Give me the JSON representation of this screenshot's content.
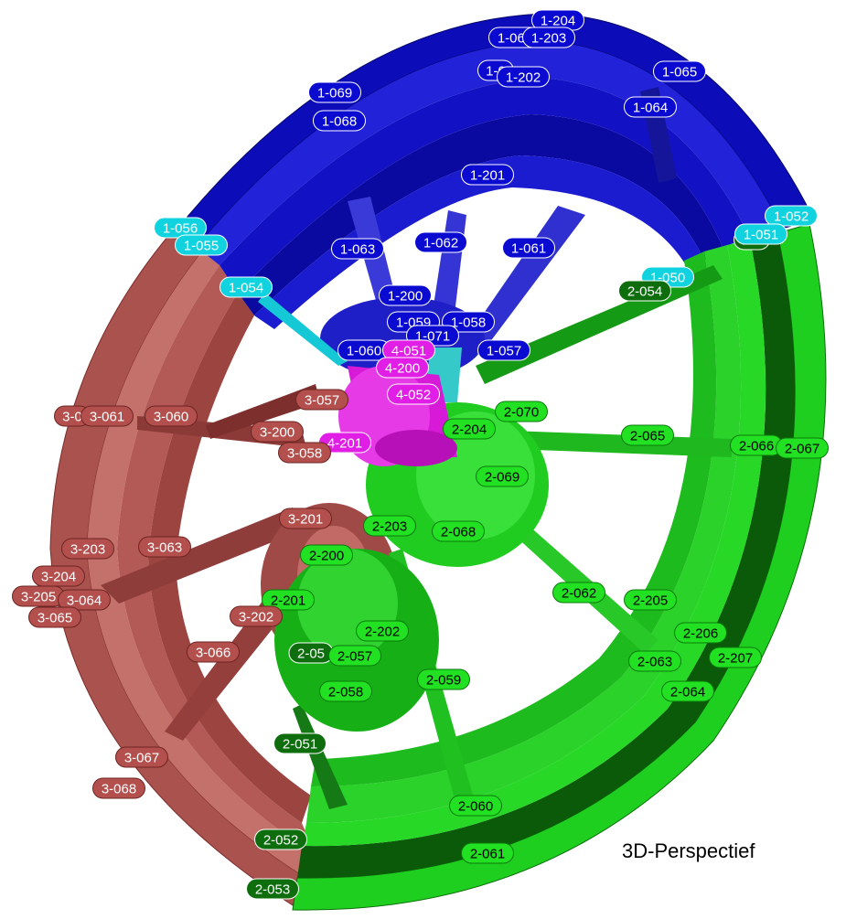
{
  "caption": "3D-Perspectief",
  "colors": {
    "blue": "#0a0ad0",
    "cyan": "#11d3e0",
    "magenta": "#e11ee6",
    "red": "#b3504d",
    "lightgreen": "#22e022",
    "darkgreen": "#0e6e0e",
    "brightred": "#e00000"
  },
  "labels": [
    {
      "text": "1-204",
      "color": "blue"
    },
    {
      "text": "1-067",
      "color": "blue"
    },
    {
      "text": "1-203",
      "color": "blue"
    },
    {
      "text": "1-0",
      "color": "blue"
    },
    {
      "text": "1-202",
      "color": "blue"
    },
    {
      "text": "1-065",
      "color": "blue"
    },
    {
      "text": "1-069",
      "color": "blue"
    },
    {
      "text": "1-068",
      "color": "blue"
    },
    {
      "text": "1-064",
      "color": "blue"
    },
    {
      "text": "1-201",
      "color": "blue"
    },
    {
      "text": "1-052",
      "color": "cyan"
    },
    {
      "text": "1-056",
      "color": "cyan"
    },
    {
      "text": "1-055",
      "color": "cyan"
    },
    {
      "text": "1-063",
      "color": "blue"
    },
    {
      "text": "1-062",
      "color": "blue"
    },
    {
      "text": "1-061",
      "color": "blue"
    },
    {
      "text": "2-0",
      "color": "darkgreen"
    },
    {
      "text": "1-051",
      "color": "cyan"
    },
    {
      "text": "1-054",
      "color": "cyan"
    },
    {
      "text": "1-050",
      "color": "cyan"
    },
    {
      "text": "2-054",
      "color": "darkgreen"
    },
    {
      "text": "1-200",
      "color": "blue"
    },
    {
      "text": "1-059",
      "color": "blue"
    },
    {
      "text": "1-058",
      "color": "blue"
    },
    {
      "text": "1-071",
      "color": "blue"
    },
    {
      "text": "1-060",
      "color": "blue"
    },
    {
      "text": "4-051",
      "color": "magenta"
    },
    {
      "text": "1-057",
      "color": "blue"
    },
    {
      "text": "4-200",
      "color": "magenta"
    },
    {
      "text": "4-052",
      "color": "magenta"
    },
    {
      "text": "3-057",
      "color": "red"
    },
    {
      "text": "2-070",
      "color": "lightgreen"
    },
    {
      "text": "3-0",
      "color": "red"
    },
    {
      "text": "3-061",
      "color": "red"
    },
    {
      "text": "3-060",
      "color": "red"
    },
    {
      "text": "3-200",
      "color": "red"
    },
    {
      "text": "2-204",
      "color": "lightgreen"
    },
    {
      "text": "2-065",
      "color": "lightgreen"
    },
    {
      "text": "4-201",
      "color": "magenta"
    },
    {
      "text": "3-058",
      "color": "red"
    },
    {
      "text": "2-066",
      "color": "lightgreen"
    },
    {
      "text": "2-067",
      "color": "lightgreen"
    },
    {
      "text": "2-069",
      "color": "lightgreen"
    },
    {
      "text": "3-201",
      "color": "red"
    },
    {
      "text": "2-203",
      "color": "lightgreen"
    },
    {
      "text": "2-068",
      "color": "lightgreen"
    },
    {
      "text": "3-203",
      "color": "red"
    },
    {
      "text": "3-063",
      "color": "red"
    },
    {
      "text": "2-200",
      "color": "lightgreen"
    },
    {
      "text": "3-204",
      "color": "red"
    },
    {
      "text": "2-062",
      "color": "lightgreen"
    },
    {
      "text": "2-205",
      "color": "lightgreen"
    },
    {
      "text": "3-205",
      "color": "red"
    },
    {
      "text": "3-064",
      "color": "red"
    },
    {
      "text": "2-201",
      "color": "lightgreen"
    },
    {
      "text": "3-065",
      "color": "red"
    },
    {
      "text": "3-202",
      "color": "red"
    },
    {
      "text": "2-202",
      "color": "lightgreen"
    },
    {
      "text": "2-206",
      "color": "lightgreen"
    },
    {
      "text": "3-066",
      "color": "red"
    },
    {
      "text": "2-05",
      "color": "darkgreen"
    },
    {
      "text": "2-057",
      "color": "lightgreen"
    },
    {
      "text": "2-207",
      "color": "lightgreen"
    },
    {
      "text": "2-063",
      "color": "lightgreen"
    },
    {
      "text": "2-059",
      "color": "lightgreen"
    },
    {
      "text": "2-058",
      "color": "lightgreen"
    },
    {
      "text": "2-064",
      "color": "lightgreen"
    },
    {
      "text": "2-051",
      "color": "darkgreen"
    },
    {
      "text": "3-067",
      "color": "red"
    },
    {
      "text": "3-068",
      "color": "red"
    },
    {
      "text": "2-060",
      "color": "lightgreen"
    },
    {
      "text": "2-052",
      "color": "darkgreen"
    },
    {
      "text": "2-061",
      "color": "lightgreen"
    },
    {
      "text": "2-053",
      "color": "darkgreen"
    }
  ]
}
